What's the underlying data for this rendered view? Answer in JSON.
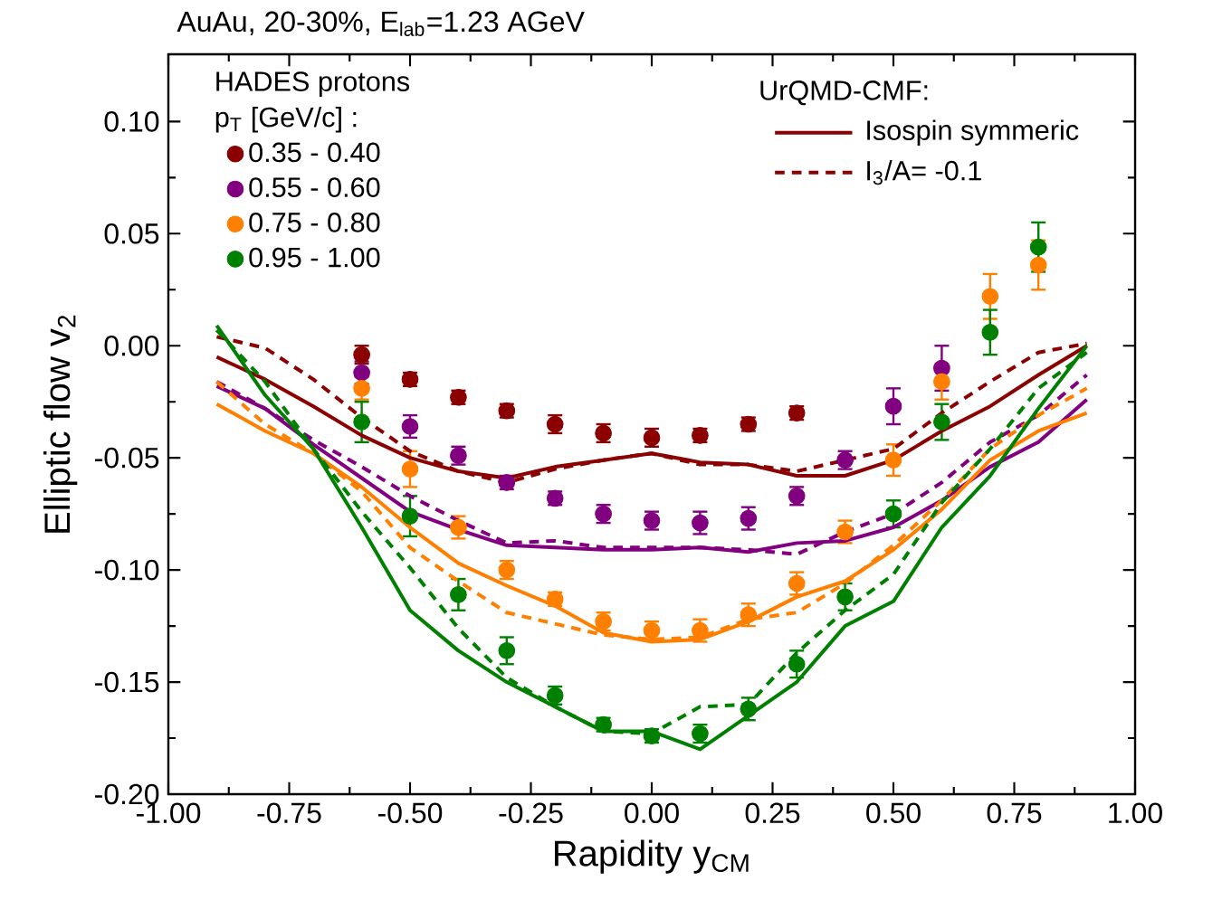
{
  "chart_data": {
    "type": "scatter",
    "title": "AuAu, 20-30%, E$_{lab}$=1.23 AGeV",
    "xlabel": "Rapidity y$_{CM}$",
    "ylabel": "Elliptic flow v$_{2}$",
    "legend_title": "HADES protons",
    "annotations": [
      "p$_{T}$ [GeV/c] :",
      "UrQMD-CMF:"
    ],
    "xlim": [
      -1,
      1
    ],
    "ylim": [
      -0.2,
      0.13
    ],
    "xticks": [
      {
        "value": -1,
        "label": "-1.00"
      },
      {
        "value": -0.75,
        "label": "-0.75"
      },
      {
        "value": -0.5,
        "label": "-0.50"
      },
      {
        "value": -0.25,
        "label": "-0.25"
      },
      {
        "value": 0,
        "label": "0.00"
      },
      {
        "value": 0.25,
        "label": "0.25"
      },
      {
        "value": 0.5,
        "label": "0.50"
      },
      {
        "value": 0.75,
        "label": "0.75"
      },
      {
        "value": 1,
        "label": "1.00"
      }
    ],
    "yticks": [
      {
        "value": -0.2,
        "label": "-0.20"
      },
      {
        "value": -0.15,
        "label": "-0.15"
      },
      {
        "value": -0.1,
        "label": "-0.10"
      },
      {
        "value": -0.05,
        "label": "-0.05"
      },
      {
        "value": 0,
        "label": "0.00"
      },
      {
        "value": 0.05,
        "label": "0.05"
      },
      {
        "value": 0.1,
        "label": "0.10"
      }
    ],
    "legend": "top left",
    "series": [
      {
        "name": "0.35 - 0.40",
        "marker": "circle",
        "color": "#8b0000",
        "x": [
          -0.6,
          -0.5,
          -0.4,
          -0.3,
          -0.2,
          -0.1,
          0,
          0.1,
          0.2,
          0.3
        ],
        "values": [
          -0.004,
          -0.015,
          -0.023,
          -0.029,
          -0.035,
          -0.039,
          -0.041,
          -0.04,
          -0.035,
          -0.03
        ],
        "errors": [
          0.004,
          0.003,
          0.003,
          0.003,
          0.004,
          0.004,
          0.004,
          0.003,
          0.003,
          0.003
        ]
      },
      {
        "name": "0.55 - 0.60",
        "marker": "circle",
        "color": "#800080",
        "x": [
          -0.6,
          -0.5,
          -0.4,
          -0.3,
          -0.2,
          -0.1,
          0,
          0.1,
          0.2,
          0.3,
          0.4,
          0.5,
          0.6
        ],
        "values": [
          -0.012,
          -0.036,
          -0.049,
          -0.061,
          -0.068,
          -0.075,
          -0.078,
          -0.079,
          -0.077,
          -0.067,
          -0.051,
          -0.027,
          -0.01
        ],
        "errors": [
          0.005,
          0.005,
          0.004,
          0.003,
          0.003,
          0.004,
          0.004,
          0.005,
          0.005,
          0.004,
          0.004,
          0.008,
          0.01
        ]
      },
      {
        "name": "0.75 - 0.80",
        "marker": "circle",
        "color": "#ff8000",
        "x": [
          -0.6,
          -0.5,
          -0.4,
          -0.3,
          -0.2,
          -0.1,
          0,
          0.1,
          0.2,
          0.3,
          0.4,
          0.5,
          0.6,
          0.7,
          0.8
        ],
        "values": [
          -0.019,
          -0.055,
          -0.081,
          -0.1,
          -0.113,
          -0.123,
          -0.127,
          -0.127,
          -0.12,
          -0.106,
          -0.083,
          -0.051,
          -0.016,
          0.022,
          0.036
        ],
        "errors": [
          0.005,
          0.008,
          0.005,
          0.004,
          0.003,
          0.004,
          0.004,
          0.005,
          0.005,
          0.005,
          0.005,
          0.007,
          0.008,
          0.01,
          0.011
        ]
      },
      {
        "name": "0.95 - 1.00",
        "marker": "circle",
        "color": "#008000",
        "x": [
          -0.6,
          -0.5,
          -0.4,
          -0.3,
          -0.2,
          -0.1,
          0,
          0.1,
          0.2,
          0.3,
          0.4,
          0.5,
          0.6,
          0.7,
          0.8
        ],
        "values": [
          -0.034,
          -0.076,
          -0.111,
          -0.136,
          -0.156,
          -0.169,
          -0.174,
          -0.173,
          -0.162,
          -0.142,
          -0.112,
          -0.075,
          -0.034,
          0.006,
          0.044
        ],
        "errors": [
          0.009,
          0.009,
          0.007,
          0.006,
          0.004,
          0.003,
          0.003,
          0.004,
          0.005,
          0.006,
          0.006,
          0.006,
          0.008,
          0.01,
          0.011
        ]
      },
      {
        "name": "Isospin symmeric",
        "type": "line",
        "marker": "none",
        "line_style": "solid",
        "color": "#8b0000",
        "x": [
          -0.9,
          -0.8,
          -0.7,
          -0.6,
          -0.5,
          -0.4,
          -0.3,
          -0.2,
          -0.1,
          0,
          0.1,
          0.2,
          0.3,
          0.4,
          0.5,
          0.6,
          0.7,
          0.8,
          0.9
        ],
        "values": [
          -0.005,
          -0.015,
          -0.027,
          -0.04,
          -0.05,
          -0.056,
          -0.059,
          -0.054,
          -0.051,
          -0.048,
          -0.052,
          -0.053,
          -0.058,
          -0.058,
          -0.051,
          -0.038,
          -0.027,
          -0.013,
          0.0
        ]
      },
      {
        "name": "I$_{3}$/A= -0.1",
        "type": "line",
        "marker": "none",
        "line_style": "dashed",
        "color": "#8b0000",
        "x": [
          -0.9,
          -0.8,
          -0.7,
          -0.6,
          -0.5,
          -0.4,
          -0.3,
          -0.2,
          -0.1,
          0,
          0.1,
          0.2,
          0.3,
          0.4,
          0.5,
          0.6,
          0.7,
          0.8,
          0.9
        ],
        "values": [
          0.004,
          -0.001,
          -0.015,
          -0.032,
          -0.047,
          -0.056,
          -0.061,
          -0.055,
          -0.051,
          -0.048,
          -0.053,
          -0.053,
          -0.056,
          -0.051,
          -0.046,
          -0.03,
          -0.016,
          -0.003,
          0.001
        ]
      },
      {
        "type": "line",
        "marker": "none",
        "line_style": "solid",
        "color": "#800080",
        "x": [
          -0.9,
          -0.8,
          -0.7,
          -0.6,
          -0.5,
          -0.4,
          -0.3,
          -0.2,
          -0.1,
          0,
          0.1,
          0.2,
          0.3,
          0.4,
          0.5,
          0.6,
          0.7,
          0.8,
          0.9
        ],
        "values": [
          -0.018,
          -0.028,
          -0.044,
          -0.059,
          -0.074,
          -0.082,
          -0.089,
          -0.09,
          -0.091,
          -0.091,
          -0.09,
          -0.092,
          -0.088,
          -0.087,
          -0.081,
          -0.069,
          -0.054,
          -0.043,
          -0.024
        ]
      },
      {
        "type": "line",
        "marker": "none",
        "line_style": "dashed",
        "color": "#800080",
        "x": [
          -0.9,
          -0.8,
          -0.7,
          -0.6,
          -0.5,
          -0.4,
          -0.3,
          -0.2,
          -0.1,
          0,
          0.1,
          0.2,
          0.3,
          0.4,
          0.5,
          0.6,
          0.7,
          0.8,
          0.9
        ],
        "values": [
          -0.016,
          -0.028,
          -0.042,
          -0.054,
          -0.067,
          -0.078,
          -0.088,
          -0.087,
          -0.09,
          -0.09,
          -0.09,
          -0.091,
          -0.093,
          -0.083,
          -0.075,
          -0.061,
          -0.043,
          -0.031,
          -0.013
        ]
      },
      {
        "type": "line",
        "marker": "none",
        "line_style": "solid",
        "color": "#ff8000",
        "x": [
          -0.9,
          -0.8,
          -0.7,
          -0.6,
          -0.5,
          -0.4,
          -0.3,
          -0.2,
          -0.1,
          0,
          0.1,
          0.2,
          0.3,
          0.4,
          0.5,
          0.6,
          0.7,
          0.8,
          0.9
        ],
        "values": [
          -0.026,
          -0.038,
          -0.048,
          -0.063,
          -0.081,
          -0.097,
          -0.107,
          -0.116,
          -0.128,
          -0.132,
          -0.131,
          -0.123,
          -0.112,
          -0.105,
          -0.091,
          -0.073,
          -0.051,
          -0.038,
          -0.03
        ]
      },
      {
        "type": "line",
        "marker": "none",
        "line_style": "dashed",
        "color": "#ff8000",
        "x": [
          -0.9,
          -0.8,
          -0.7,
          -0.6,
          -0.5,
          -0.4,
          -0.3,
          -0.2,
          -0.1,
          0,
          0.1,
          0.2,
          0.3,
          0.4,
          0.5,
          0.6,
          0.7,
          0.8,
          0.9
        ],
        "values": [
          -0.016,
          -0.035,
          -0.048,
          -0.065,
          -0.09,
          -0.105,
          -0.119,
          -0.124,
          -0.129,
          -0.131,
          -0.13,
          -0.122,
          -0.119,
          -0.106,
          -0.089,
          -0.069,
          -0.046,
          -0.031,
          -0.019
        ]
      },
      {
        "type": "line",
        "marker": "none",
        "line_style": "solid",
        "color": "#008000",
        "x": [
          -0.9,
          -0.8,
          -0.7,
          -0.6,
          -0.5,
          -0.4,
          -0.3,
          -0.2,
          -0.1,
          0,
          0.1,
          0.2,
          0.3,
          0.4,
          0.5,
          0.6,
          0.7,
          0.8,
          0.9
        ],
        "values": [
          0.009,
          -0.022,
          -0.046,
          -0.081,
          -0.118,
          -0.136,
          -0.15,
          -0.161,
          -0.172,
          -0.172,
          -0.18,
          -0.165,
          -0.15,
          -0.125,
          -0.114,
          -0.081,
          -0.058,
          -0.028,
          0.0
        ]
      },
      {
        "type": "line",
        "marker": "none",
        "line_style": "dashed",
        "color": "#008000",
        "x": [
          -0.9,
          -0.8,
          -0.7,
          -0.6,
          -0.5,
          -0.4,
          -0.3,
          -0.2,
          -0.1,
          0,
          0.1,
          0.2,
          0.3,
          0.4,
          0.5,
          0.6,
          0.7,
          0.8,
          0.9
        ],
        "values": [
          0.007,
          -0.016,
          -0.046,
          -0.074,
          -0.099,
          -0.126,
          -0.148,
          -0.161,
          -0.172,
          -0.173,
          -0.161,
          -0.16,
          -0.137,
          -0.118,
          -0.102,
          -0.07,
          -0.046,
          -0.019,
          -0.003
        ]
      }
    ]
  }
}
